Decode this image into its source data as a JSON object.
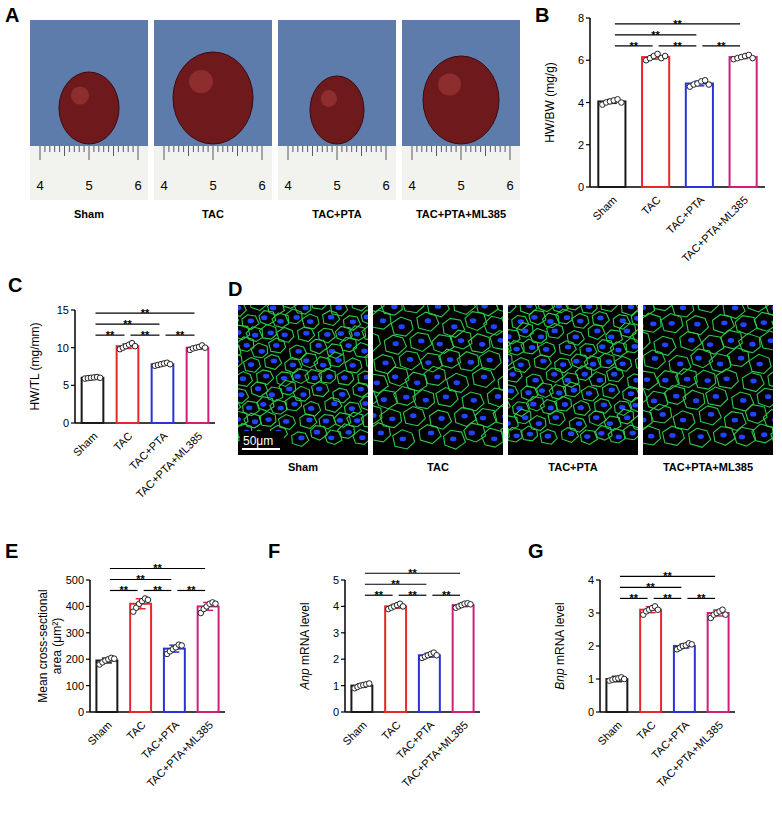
{
  "chart_data": [
    {
      "type": "bar",
      "title": "B",
      "categories": [
        "Sham",
        "TAC",
        "TAC+PTA",
        "TAC+PTA+ML385"
      ],
      "y_label": "HW/BW (mg/g)",
      "values": [
        4.05,
        6.15,
        4.9,
        6.15
      ],
      "errors": [
        0.09,
        0.1,
        0.11,
        0.07
      ],
      "points": [
        [
          3.9,
          4.0,
          4.05,
          4.1,
          4.15,
          4.0
        ],
        [
          6.0,
          6.1,
          6.2,
          6.3,
          6.1,
          6.2
        ],
        [
          4.75,
          4.85,
          4.9,
          5.0,
          5.05,
          4.85
        ],
        [
          6.05,
          6.1,
          6.15,
          6.2,
          6.25,
          6.1
        ]
      ],
      "colors": [
        "#1a1a1a",
        "#e8262b",
        "#2a33d6",
        "#d01d7e"
      ],
      "ylim": [
        0,
        8
      ],
      "yticks": [
        0,
        2,
        4,
        6,
        8
      ],
      "annotations": [
        {
          "between": [
            0,
            1
          ],
          "text": "**"
        },
        {
          "between": [
            0,
            2
          ],
          "text": "**"
        },
        {
          "between": [
            0,
            3
          ],
          "text": "**"
        },
        {
          "between": [
            1,
            2
          ],
          "text": "**"
        },
        {
          "between": [
            2,
            3
          ],
          "text": "**"
        }
      ]
    },
    {
      "type": "bar",
      "title": "C",
      "categories": [
        "Sham",
        "TAC",
        "TAC+PTA",
        "TAC+PTA+ML385"
      ],
      "y_label": "HW/TL (mg/mm)",
      "values": [
        6.0,
        10.2,
        7.8,
        10.0
      ],
      "errors": [
        0.08,
        0.3,
        0.14,
        0.2
      ],
      "points": [
        [
          5.9,
          5.95,
          6.0,
          6.05,
          6.1,
          6.0
        ],
        [
          9.8,
          10.0,
          10.2,
          10.4,
          10.6,
          10.2
        ],
        [
          7.6,
          7.7,
          7.8,
          7.9,
          8.0,
          7.8
        ],
        [
          9.7,
          9.9,
          10.0,
          10.1,
          10.3,
          10.0
        ]
      ],
      "colors": [
        "#1a1a1a",
        "#e8262b",
        "#2a33d6",
        "#d01d7e"
      ],
      "ylim": [
        0,
        15
      ],
      "yticks": [
        0,
        5,
        10,
        15
      ],
      "annotations": [
        {
          "between": [
            0,
            1
          ],
          "text": "**"
        },
        {
          "between": [
            0,
            2
          ],
          "text": "**"
        },
        {
          "between": [
            0,
            3
          ],
          "text": "**"
        },
        {
          "between": [
            1,
            2
          ],
          "text": "**"
        },
        {
          "between": [
            2,
            3
          ],
          "text": "**"
        }
      ]
    },
    {
      "type": "bar",
      "title": "E",
      "categories": [
        "Sham",
        "TAC",
        "TAC+PTA",
        "TAC+PTA+ML385"
      ],
      "y_label": "Mean cross-sectional area (μm²)",
      "values": [
        195,
        410,
        240,
        400
      ],
      "errors": [
        9,
        19,
        13,
        15
      ],
      "points": [
        [
          180,
          188,
          195,
          200,
          205,
          202
        ],
        [
          380,
          395,
          410,
          420,
          430,
          425
        ],
        [
          220,
          230,
          238,
          245,
          255,
          252
        ],
        [
          375,
          390,
          400,
          410,
          415,
          410
        ]
      ],
      "colors": [
        "#1a1a1a",
        "#e8262b",
        "#2a33d6",
        "#d01d7e"
      ],
      "ylim": [
        0,
        500
      ],
      "yticks": [
        0,
        100,
        200,
        300,
        400,
        500
      ],
      "annotations": [
        {
          "between": [
            0,
            1
          ],
          "text": "**"
        },
        {
          "between": [
            0,
            2
          ],
          "text": "**"
        },
        {
          "between": [
            0,
            3
          ],
          "text": "**"
        },
        {
          "between": [
            1,
            2
          ],
          "text": "**"
        },
        {
          "between": [
            2,
            3
          ],
          "text": "**"
        }
      ]
    },
    {
      "type": "bar",
      "title": "F",
      "categories": [
        "Sham",
        "TAC",
        "TAC+PTA",
        "TAC+PTA+ML385"
      ],
      "y_label": "Anp mRNA level",
      "values": [
        1.0,
        4.0,
        2.15,
        4.05
      ],
      "errors": [
        0.06,
        0.07,
        0.07,
        0.06
      ],
      "points": [
        [
          0.9,
          0.95,
          1.0,
          1.02,
          1.05,
          1.08
        ],
        [
          3.9,
          3.95,
          4.0,
          4.05,
          4.1,
          4.0
        ],
        [
          2.05,
          2.1,
          2.15,
          2.2,
          2.25,
          2.15
        ],
        [
          3.95,
          4.0,
          4.05,
          4.1,
          4.12,
          4.08
        ]
      ],
      "colors": [
        "#1a1a1a",
        "#e8262b",
        "#2a33d6",
        "#d01d7e"
      ],
      "ylim": [
        0,
        5
      ],
      "yticks": [
        0,
        1,
        2,
        3,
        4,
        5
      ],
      "annotations": [
        {
          "between": [
            0,
            1
          ],
          "text": "**"
        },
        {
          "between": [
            0,
            2
          ],
          "text": "**"
        },
        {
          "between": [
            0,
            3
          ],
          "text": "**"
        },
        {
          "between": [
            1,
            2
          ],
          "text": "**"
        },
        {
          "between": [
            2,
            3
          ],
          "text": "**"
        }
      ]
    },
    {
      "type": "bar",
      "title": "G",
      "categories": [
        "Sham",
        "TAC",
        "TAC+PTA",
        "TAC+PTA+ML385"
      ],
      "y_label": "Bnp mRNA level",
      "values": [
        1.0,
        3.1,
        2.0,
        3.0
      ],
      "errors": [
        0.08,
        0.09,
        0.06,
        0.09
      ],
      "points": [
        [
          0.95,
          0.98,
          1.0,
          1.02,
          1.05,
          1.0
        ],
        [
          2.95,
          3.05,
          3.1,
          3.15,
          3.2,
          3.1
        ],
        [
          1.9,
          1.95,
          2.0,
          2.02,
          2.08,
          2.05
        ],
        [
          2.85,
          2.95,
          3.0,
          3.05,
          3.1,
          2.95
        ]
      ],
      "colors": [
        "#1a1a1a",
        "#e8262b",
        "#2a33d6",
        "#d01d7e"
      ],
      "ylim": [
        0,
        4
      ],
      "yticks": [
        0,
        1,
        2,
        3,
        4
      ],
      "annotations": [
        {
          "between": [
            0,
            1
          ],
          "text": "**"
        },
        {
          "between": [
            0,
            2
          ],
          "text": "**"
        },
        {
          "between": [
            0,
            3
          ],
          "text": "**"
        },
        {
          "between": [
            1,
            2
          ],
          "text": "**"
        },
        {
          "between": [
            2,
            3
          ],
          "text": "**"
        }
      ]
    }
  ],
  "image_panels": [
    {
      "title": "A",
      "labels": [
        "Sham",
        "TAC",
        "TAC+PTA",
        "TAC+PTA+ML385"
      ],
      "ruler_ticks": [
        4,
        5,
        6
      ]
    },
    {
      "title": "D",
      "labels": [
        "Sham",
        "TAC",
        "TAC+PTA",
        "TAC+PTA+ML385"
      ],
      "scale_bar": "50μm"
    }
  ]
}
